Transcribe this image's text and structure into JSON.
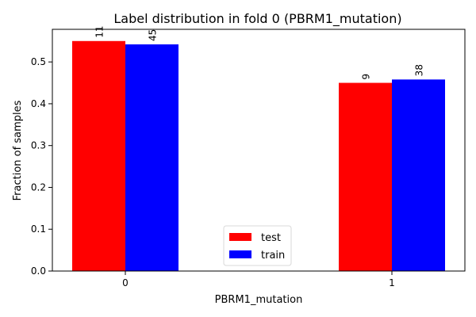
{
  "chart_data": {
    "type": "bar",
    "title": "Label distribution in fold 0 (PBRM1_mutation)",
    "xlabel": "PBRM1_mutation",
    "ylabel": "Fraction of samples",
    "categories": [
      "0",
      "1"
    ],
    "series": [
      {
        "name": "test",
        "color": "#ff0000",
        "values": [
          0.55,
          0.45
        ],
        "labels": [
          "11",
          "9"
        ]
      },
      {
        "name": "train",
        "color": "#0000ff",
        "values": [
          0.542,
          0.458
        ],
        "labels": [
          "45",
          "38"
        ]
      }
    ],
    "ylim": [
      0,
      0.578
    ],
    "yticks": [
      "0.0",
      "0.1",
      "0.2",
      "0.3",
      "0.4",
      "0.5"
    ],
    "grid": false,
    "legend_position": "bottom-center"
  }
}
